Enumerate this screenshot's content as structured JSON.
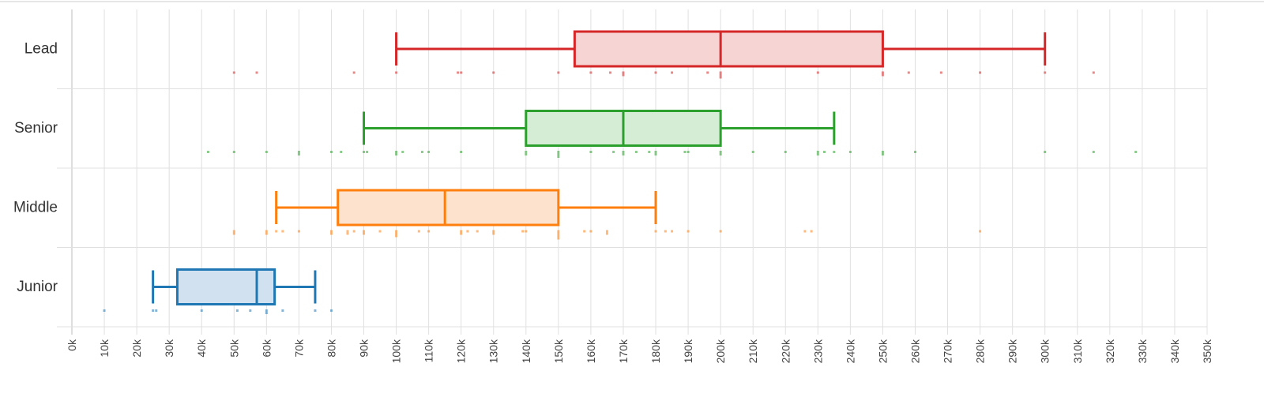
{
  "chart_data": {
    "type": "boxplot",
    "orientation": "horizontal",
    "xlim": [
      0,
      350000
    ],
    "x_ticks": [
      0,
      10000,
      20000,
      30000,
      40000,
      50000,
      60000,
      70000,
      80000,
      90000,
      100000,
      110000,
      120000,
      130000,
      140000,
      150000,
      160000,
      170000,
      180000,
      190000,
      200000,
      210000,
      220000,
      230000,
      240000,
      250000,
      260000,
      270000,
      280000,
      290000,
      300000,
      310000,
      320000,
      330000,
      340000,
      350000
    ],
    "x_tick_labels": [
      "0k",
      "10k",
      "20k",
      "30k",
      "40k",
      "50k",
      "60k",
      "70k",
      "80k",
      "90k",
      "100k",
      "110k",
      "120k",
      "130k",
      "140k",
      "150k",
      "160k",
      "170k",
      "180k",
      "190k",
      "200k",
      "210k",
      "220k",
      "230k",
      "240k",
      "250k",
      "260k",
      "270k",
      "280k",
      "290k",
      "300k",
      "310k",
      "320k",
      "330k",
      "340k",
      "350k"
    ],
    "grid": true,
    "categories": [
      "Lead",
      "Senior",
      "Middle",
      "Junior"
    ],
    "series": [
      {
        "category": "Lead",
        "color": "#d62728",
        "fill": "#f6d4d4",
        "min": 100000,
        "q1": 155000,
        "median": 200000,
        "q3": 250000,
        "max": 300000,
        "points": [
          50000,
          57000,
          87000,
          100000,
          119000,
          120000,
          130000,
          150000,
          160000,
          166000,
          170000,
          170000,
          180000,
          185000,
          196000,
          200000,
          200000,
          200000,
          230000,
          250000,
          250000,
          258000,
          268000,
          280000,
          300000,
          315000
        ]
      },
      {
        "category": "Senior",
        "color": "#2ca02c",
        "fill": "#d5ecd5",
        "min": 90000,
        "q1": 140000,
        "median": 170000,
        "q3": 200000,
        "max": 235000,
        "points": [
          42000,
          50000,
          60000,
          70000,
          70000,
          80000,
          83000,
          90000,
          91000,
          100000,
          100000,
          102000,
          108000,
          110000,
          120000,
          140000,
          140000,
          150000,
          150000,
          150000,
          160000,
          167000,
          170000,
          170000,
          174000,
          178000,
          180000,
          180000,
          189000,
          190000,
          200000,
          200000,
          210000,
          220000,
          230000,
          230000,
          232000,
          235000,
          240000,
          250000,
          250000,
          260000,
          300000,
          315000,
          328000
        ]
      },
      {
        "category": "Middle",
        "color": "#ff7f0e",
        "fill": "#fde2cd",
        "min": 63000,
        "q1": 82000,
        "median": 115000,
        "q3": 150000,
        "max": 180000,
        "points": [
          50000,
          50000,
          60000,
          60000,
          63000,
          65000,
          70000,
          80000,
          80000,
          85000,
          85000,
          87000,
          90000,
          90000,
          95000,
          100000,
          100000,
          100000,
          107000,
          110000,
          120000,
          120000,
          122000,
          125000,
          130000,
          130000,
          139000,
          140000,
          150000,
          150000,
          150000,
          150000,
          158000,
          160000,
          165000,
          165000,
          180000,
          183000,
          185000,
          190000,
          200000,
          226000,
          228000,
          280000
        ]
      },
      {
        "category": "Junior",
        "color": "#1f77b4",
        "fill": "#d2e1ef",
        "min": 25000,
        "q1": 32500,
        "median": 57000,
        "q3": 62500,
        "max": 75000,
        "points": [
          10000,
          25000,
          26000,
          40000,
          51000,
          55000,
          60000,
          60000,
          65000,
          75000,
          80000
        ]
      }
    ]
  }
}
